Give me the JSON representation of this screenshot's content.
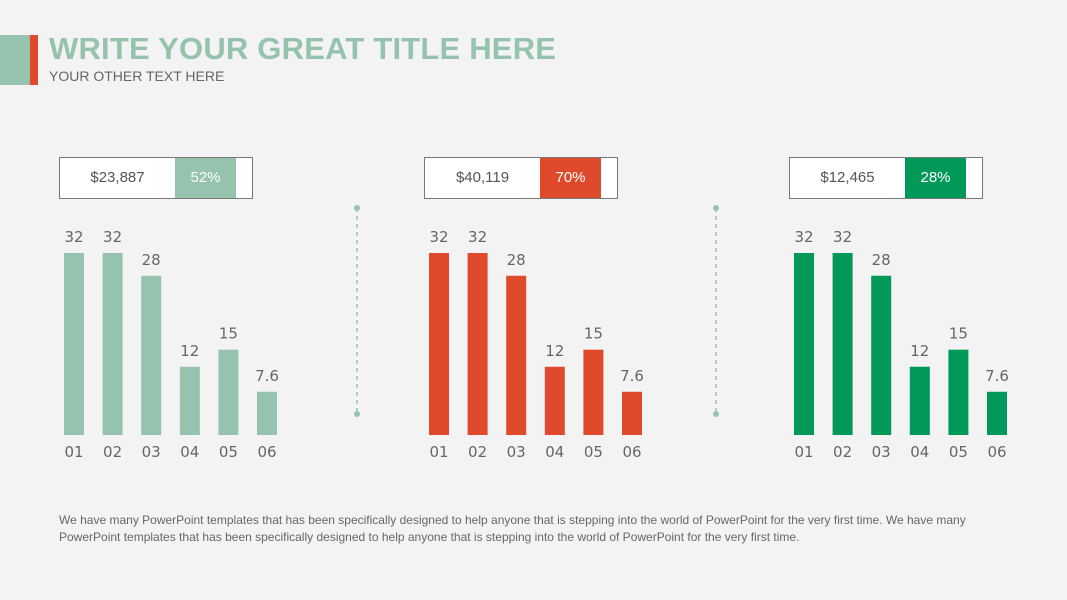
{
  "header": {
    "title": "WRITE YOUR GREAT TITLE HERE",
    "subtitle": "YOUR OTHER TEXT HERE"
  },
  "colors": {
    "sage": "#96c3ae",
    "red": "#e04a2c",
    "green": "#00995a"
  },
  "kpis": [
    {
      "value": "$23,887",
      "percent": "52%",
      "color": "#96c3ae"
    },
    {
      "value": "$40,119",
      "percent": "70%",
      "color": "#e04a2c"
    },
    {
      "value": "$12,465",
      "percent": "28%",
      "color": "#00995a"
    }
  ],
  "chart_data": [
    {
      "type": "bar",
      "categories": [
        "01",
        "02",
        "03",
        "04",
        "05",
        "06"
      ],
      "values": [
        32,
        32,
        28,
        12,
        15,
        7.6
      ],
      "data_labels": [
        "32",
        "32",
        "28",
        "12",
        "15",
        "7.6"
      ],
      "color": "#96c3ae",
      "ylim": [
        0,
        32
      ]
    },
    {
      "type": "bar",
      "categories": [
        "01",
        "02",
        "03",
        "04",
        "05",
        "06"
      ],
      "values": [
        32,
        32,
        28,
        12,
        15,
        7.6
      ],
      "data_labels": [
        "32",
        "32",
        "28",
        "12",
        "15",
        "7.6"
      ],
      "color": "#e04a2c",
      "ylim": [
        0,
        32
      ]
    },
    {
      "type": "bar",
      "categories": [
        "01",
        "02",
        "03",
        "04",
        "05",
        "06"
      ],
      "values": [
        32,
        32,
        28,
        12,
        15,
        7.6
      ],
      "data_labels": [
        "32",
        "32",
        "28",
        "12",
        "15",
        "7.6"
      ],
      "color": "#00995a",
      "ylim": [
        0,
        32
      ]
    }
  ],
  "footer": {
    "text": "We have many PowerPoint templates that has been specifically designed to help anyone that is stepping into the world of PowerPoint for the very first time. We have many PowerPoint templates that has been specifically designed to help anyone that is stepping into the world of PowerPoint for the very first time."
  }
}
